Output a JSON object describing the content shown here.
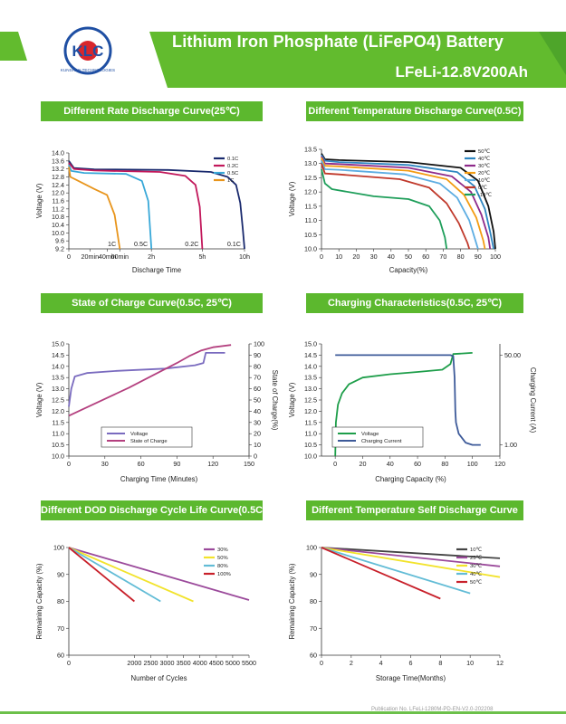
{
  "header": {
    "brand": "KLC",
    "brand_subtitle": "KUNSHAN TECHNOLOGIES",
    "title_line1": "Lithium Iron Phosphate (LiFePO4) Battery",
    "title_line2": "LFeLi-12.8V200Ah",
    "colors": {
      "band": "#62bb2e",
      "band_dark": "#4ea52a",
      "logo_red": "#d8262c",
      "logo_blue": "#1f4fa3"
    }
  },
  "footer": {
    "publication": "Publication No. LFeLi-1280M-PD-EN-V2.0-202208"
  },
  "chart_data": [
    {
      "id": "rate",
      "section_title": "Different Rate Discharge Curve(25℃)",
      "type": "line",
      "xlabel": "Discharge Time",
      "ylabel": "Voltage (V)",
      "x_ticks": [
        "0",
        "20min",
        "40min",
        "60min",
        "2h",
        "5h",
        "10h"
      ],
      "ylim": [
        9.2,
        14.0
      ],
      "y_ticks": [
        "14.0",
        "13.6",
        "13.2",
        "12.8",
        "12.4",
        "12.0",
        "11.6",
        "11.2",
        "10.8",
        "10.4",
        "10.0",
        "9.6",
        "9.2"
      ],
      "legend_position": "top-right",
      "series": [
        {
          "name": "0.1C",
          "color": "#1a2a6e",
          "end_label": "0.1C",
          "points": [
            [
              0.0,
              13.6
            ],
            [
              0.1,
              13.25
            ],
            [
              0.5,
              13.18
            ],
            [
              3,
              13.15
            ],
            [
              6,
              13.05
            ],
            [
              8,
              12.8
            ],
            [
              9,
              12.4
            ],
            [
              9.5,
              11.5
            ],
            [
              9.8,
              10.2
            ],
            [
              10,
              9.2
            ]
          ]
        },
        {
          "name": "0.2C",
          "color": "#c2185b",
          "end_label": "0.2C",
          "points": [
            [
              0.0,
              13.5
            ],
            [
              0.1,
              13.2
            ],
            [
              0.5,
              13.12
            ],
            [
              2.5,
              13.05
            ],
            [
              4,
              12.85
            ],
            [
              4.6,
              12.4
            ],
            [
              4.85,
              11.3
            ],
            [
              5,
              9.2
            ]
          ]
        },
        {
          "name": "0.5C",
          "color": "#38a8d8",
          "end_label": "0.5C",
          "points": [
            [
              0.0,
              13.4
            ],
            [
              0.05,
              13.1
            ],
            [
              0.3,
              13.0
            ],
            [
              1.2,
              12.95
            ],
            [
              1.7,
              12.6
            ],
            [
              1.9,
              11.6
            ],
            [
              2,
              9.2
            ]
          ]
        },
        {
          "name": "1C",
          "color": "#e8951c",
          "end_label": "1C",
          "points": [
            [
              0.0,
              13.3
            ],
            [
              0.03,
              12.8
            ],
            [
              0.15,
              12.65
            ],
            [
              0.5,
              12.2
            ],
            [
              0.75,
              11.9
            ],
            [
              0.9,
              10.9
            ],
            [
              1,
              9.2
            ]
          ]
        }
      ]
    },
    {
      "id": "temperature",
      "section_title": "Different Temperature Discharge Curve(0.5C)",
      "type": "line",
      "xlabel": "Capacity(%)",
      "ylabel": "Voltage (V)",
      "xlim": [
        0,
        100
      ],
      "x_ticks": [
        "0",
        "10",
        "20",
        "30",
        "40",
        "50",
        "60",
        "70",
        "80",
        "90",
        "100"
      ],
      "ylim": [
        10.0,
        13.5
      ],
      "y_ticks": [
        "13.5",
        "13.0",
        "12.5",
        "12.0",
        "11.5",
        "11.0",
        "10.5",
        "10.0"
      ],
      "legend_position": "top-right",
      "series": [
        {
          "name": "50℃",
          "color": "#111111",
          "points": [
            [
              0,
              13.35
            ],
            [
              2,
              13.15
            ],
            [
              10,
              13.12
            ],
            [
              50,
              13.05
            ],
            [
              80,
              12.85
            ],
            [
              90,
              12.4
            ],
            [
              96,
              11.5
            ],
            [
              99,
              10.6
            ],
            [
              100,
              10.0
            ]
          ]
        },
        {
          "name": "40℃",
          "color": "#2e86c1",
          "points": [
            [
              0,
              13.3
            ],
            [
              2,
              13.1
            ],
            [
              10,
              13.05
            ],
            [
              50,
              12.95
            ],
            [
              78,
              12.7
            ],
            [
              88,
              12.2
            ],
            [
              94,
              11.4
            ],
            [
              97,
              10.6
            ],
            [
              99,
              10.0
            ]
          ]
        },
        {
          "name": "30℃",
          "color": "#8e2a8a",
          "points": [
            [
              0,
              13.25
            ],
            [
              2,
              13.0
            ],
            [
              10,
              12.98
            ],
            [
              50,
              12.85
            ],
            [
              75,
              12.55
            ],
            [
              86,
              12.0
            ],
            [
              92,
              11.2
            ],
            [
              96,
              10.4
            ],
            [
              97,
              10.0
            ]
          ]
        },
        {
          "name": "20℃",
          "color": "#f39c12",
          "points": [
            [
              0,
              13.2
            ],
            [
              2,
              12.92
            ],
            [
              10,
              12.9
            ],
            [
              50,
              12.75
            ],
            [
              72,
              12.45
            ],
            [
              82,
              11.9
            ],
            [
              89,
              11.1
            ],
            [
              93,
              10.3
            ],
            [
              94,
              10.0
            ]
          ]
        },
        {
          "name": "10℃",
          "color": "#5dade2",
          "points": [
            [
              0,
              13.1
            ],
            [
              2,
              12.8
            ],
            [
              10,
              12.78
            ],
            [
              48,
              12.62
            ],
            [
              68,
              12.3
            ],
            [
              78,
              11.8
            ],
            [
              85,
              11.0
            ],
            [
              89,
              10.2
            ],
            [
              90,
              10.0
            ]
          ]
        },
        {
          "name": "0℃",
          "color": "#c0392b",
          "points": [
            [
              0,
              13.0
            ],
            [
              2,
              12.65
            ],
            [
              10,
              12.62
            ],
            [
              45,
              12.45
            ],
            [
              62,
              12.15
            ],
            [
              72,
              11.6
            ],
            [
              79,
              10.9
            ],
            [
              84,
              10.2
            ],
            [
              85,
              10.0
            ]
          ]
        },
        {
          "name": "-10℃",
          "color": "#1e9e5a",
          "points": [
            [
              0,
              12.8
            ],
            [
              2,
              12.3
            ],
            [
              6,
              12.1
            ],
            [
              30,
              11.85
            ],
            [
              50,
              11.75
            ],
            [
              62,
              11.5
            ],
            [
              68,
              11.0
            ],
            [
              71,
              10.4
            ],
            [
              72,
              10.0
            ]
          ]
        }
      ]
    },
    {
      "id": "soc",
      "section_title": "State of Charge Curve(0.5C, 25℃)",
      "type": "line",
      "xlabel": "Charging Time (Minutes)",
      "ylabel": "Voltage (V)",
      "y2label": "State of Charge(%)",
      "xlim": [
        0,
        150
      ],
      "x_ticks": [
        "0",
        "30",
        "60",
        "90",
        "120",
        "150"
      ],
      "ylim": [
        10.0,
        15.0
      ],
      "y_ticks": [
        "15.0",
        "14.5",
        "14.0",
        "13.5",
        "13.0",
        "12.5",
        "12.0",
        "11.5",
        "11.0",
        "10.5",
        "10.0"
      ],
      "y2lim": [
        0,
        100
      ],
      "y2_ticks": [
        "100",
        "90",
        "80",
        "70",
        "60",
        "50",
        "40",
        "30",
        "20",
        "10",
        "0"
      ],
      "legend_position": "bottom-left",
      "series": [
        {
          "name": "Voltage",
          "color": "#7a6bbf",
          "axis": "left",
          "points": [
            [
              0,
              12.2
            ],
            [
              2,
              13.0
            ],
            [
              5,
              13.55
            ],
            [
              15,
              13.7
            ],
            [
              40,
              13.8
            ],
            [
              80,
              13.9
            ],
            [
              105,
              14.05
            ],
            [
              112,
              14.15
            ],
            [
              114,
              14.6
            ],
            [
              130,
              14.6
            ]
          ]
        },
        {
          "name": "State of Charge",
          "color": "#b4407f",
          "axis": "right",
          "points": [
            [
              0,
              36
            ],
            [
              10,
              41
            ],
            [
              30,
              51
            ],
            [
              50,
              61
            ],
            [
              70,
              72
            ],
            [
              90,
              83
            ],
            [
              100,
              89
            ],
            [
              110,
              94
            ],
            [
              120,
              97
            ],
            [
              135,
              99
            ]
          ]
        }
      ]
    },
    {
      "id": "charging",
      "section_title": "Charging Characteristics(0.5C, 25℃)",
      "type": "line",
      "xlabel": "Charging Capacity (%)",
      "ylabel": "Voltage (V)",
      "y2label": "Charging Current (A)",
      "xlim": [
        -10,
        120
      ],
      "x_ticks": [
        "0",
        "20",
        "40",
        "60",
        "80",
        "100",
        "120"
      ],
      "ylim": [
        10.0,
        15.0
      ],
      "y_ticks": [
        "15.0",
        "14.5",
        "14.0",
        "13.5",
        "13.0",
        "12.5",
        "12.0",
        "11.5",
        "11.0",
        "10.5",
        "10.0"
      ],
      "y2_ticks": [
        "50.00",
        "1.00"
      ],
      "legend_position": "bottom-left",
      "series": [
        {
          "name": "Voltage",
          "color": "#1e9e4a",
          "axis": "left",
          "points": [
            [
              0,
              10.0
            ],
            [
              0.5,
              11.5
            ],
            [
              2,
              12.3
            ],
            [
              5,
              12.8
            ],
            [
              10,
              13.2
            ],
            [
              20,
              13.5
            ],
            [
              40,
              13.65
            ],
            [
              60,
              13.75
            ],
            [
              78,
              13.85
            ],
            [
              84,
              14.1
            ],
            [
              86,
              14.55
            ],
            [
              100,
              14.6
            ]
          ]
        },
        {
          "name": "Charging Current",
          "color": "#3d5a99",
          "axis": "right",
          "points": [
            [
              0,
              14.5
            ],
            [
              84,
              14.5
            ],
            [
              86,
              14.45
            ],
            [
              87,
              13.5
            ],
            [
              87.5,
              12.0
            ],
            [
              88,
              11.5
            ],
            [
              90,
              11.0
            ],
            [
              95,
              10.6
            ],
            [
              100,
              10.5
            ],
            [
              106,
              10.5
            ]
          ]
        }
      ]
    },
    {
      "id": "dod",
      "section_title": "Different DOD Discharge Cycle Life Curve(0.5C)",
      "type": "line",
      "xlabel": "Number of Cycles",
      "ylabel": "Remaining Capacity (%)",
      "xlim": [
        0,
        5500
      ],
      "x_ticks": [
        "0",
        "2000",
        "2500",
        "3000",
        "3500",
        "4000",
        "4500",
        "5000",
        "5500"
      ],
      "ylim": [
        60,
        100
      ],
      "y_ticks": [
        "100",
        "90",
        "80",
        "70",
        "60"
      ],
      "legend_position": "top-right",
      "series": [
        {
          "name": "30%",
          "color": "#9b4a9b",
          "points": [
            [
              0,
              100
            ],
            [
              5500,
              80.5
            ]
          ]
        },
        {
          "name": "50%",
          "color": "#f2e32c",
          "points": [
            [
              0,
              100
            ],
            [
              3800,
              80
            ]
          ]
        },
        {
          "name": "80%",
          "color": "#62bcd6",
          "points": [
            [
              0,
              100
            ],
            [
              2800,
              80
            ]
          ]
        },
        {
          "name": "100%",
          "color": "#c8202a",
          "points": [
            [
              0,
              100
            ],
            [
              2000,
              80
            ]
          ]
        }
      ]
    },
    {
      "id": "selfdischarge",
      "section_title": "Different Temperature Self Discharge Curve",
      "type": "line",
      "xlabel": "Storage Time(Months)",
      "ylabel": "Remaining Capacity (%)",
      "xlim": [
        0,
        12
      ],
      "x_ticks": [
        "0",
        "2",
        "4",
        "6",
        "8",
        "10",
        "12"
      ],
      "ylim": [
        60,
        100
      ],
      "y_ticks": [
        "100",
        "90",
        "80",
        "70",
        "60"
      ],
      "legend_position": "top-right",
      "series": [
        {
          "name": "10℃",
          "color": "#444444",
          "points": [
            [
              0,
              100
            ],
            [
              12,
              96
            ]
          ]
        },
        {
          "name": "25℃",
          "color": "#9b4a9b",
          "points": [
            [
              0,
              100
            ],
            [
              12,
              93
            ]
          ]
        },
        {
          "name": "30℃",
          "color": "#f2e32c",
          "points": [
            [
              0,
              100
            ],
            [
              12,
              89
            ]
          ]
        },
        {
          "name": "40℃",
          "color": "#62bcd6",
          "points": [
            [
              0,
              100
            ],
            [
              10,
              83
            ]
          ]
        },
        {
          "name": "50℃",
          "color": "#c8202a",
          "points": [
            [
              0,
              100
            ],
            [
              8,
              81
            ]
          ]
        }
      ]
    }
  ]
}
